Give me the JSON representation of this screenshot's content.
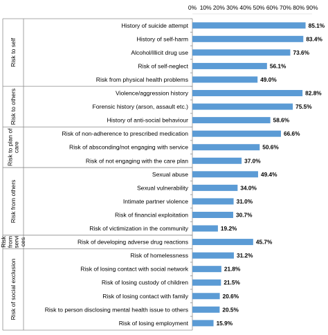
{
  "chart_data": {
    "type": "bar",
    "orientation": "horizontal",
    "xlim": [
      0,
      90
    ],
    "x_ticks": [
      "0%",
      "10%",
      "20%",
      "30%",
      "40%",
      "50%",
      "60%",
      "70%",
      "80%",
      "90%"
    ],
    "bar_color": "#5b9bd5",
    "value_suffix": "%",
    "groups": [
      {
        "label_lines": [
          "Risk to self"
        ],
        "categories": [
          "History of suicide attempt",
          "History of self-harm",
          "Alcohol/illicit drug use",
          "Risk of self-neglect",
          "Risk from physical health problems"
        ],
        "values": [
          85.1,
          83.4,
          73.6,
          56.1,
          49.0
        ]
      },
      {
        "label_lines": [
          "Risk to others"
        ],
        "categories": [
          "Violence/aggression history",
          "Forensic history (arson, assault etc.)",
          "History of anti-social behaviour"
        ],
        "values": [
          82.8,
          75.5,
          58.6
        ]
      },
      {
        "label_lines": [
          "Risk to plan of",
          "care"
        ],
        "categories": [
          "Risk of non-adherence to prescribed medication",
          "Risk of absconding/not engaging with service",
          "Risk of not engaging with the care plan"
        ],
        "values": [
          66.6,
          50.6,
          37.0
        ]
      },
      {
        "label_lines": [
          "Risk from others"
        ],
        "categories": [
          "Sexual abuse",
          "Sexual vulnerability",
          "Intimate partner violence",
          "Risk of financial exploitation",
          "Risk of victimization in the community"
        ],
        "values": [
          49.4,
          34.0,
          31.0,
          30.7,
          19.2
        ]
      },
      {
        "label_lines": [
          "Risk",
          "from",
          "servi",
          "ces"
        ],
        "categories": [
          "Risk of developing adverse drug reactions"
        ],
        "values": [
          45.7
        ]
      },
      {
        "label_lines": [
          "Risk of social exclusion"
        ],
        "categories": [
          "Risk of homelessness",
          "Risk of losing contact with social network",
          "Risk of losing custody of children",
          "Risk of losing contact with family",
          "Risk to person disclosing mental health issue to others",
          "Risk of losing employment"
        ],
        "values": [
          31.2,
          21.8,
          21.5,
          20.6,
          20.5,
          15.9
        ]
      }
    ]
  }
}
